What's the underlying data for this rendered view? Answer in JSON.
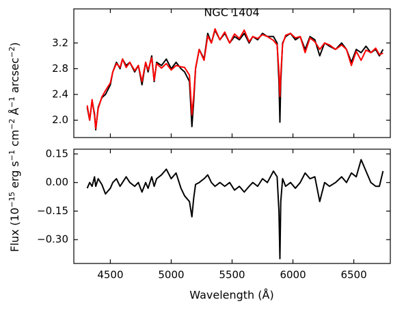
{
  "chart_data": [
    {
      "type": "line",
      "title": "NGC 1404",
      "x": [
        4310,
        4330,
        4350,
        4370,
        4380,
        4400,
        4430,
        4460,
        4500,
        4520,
        4550,
        4580,
        4600,
        4630,
        4660,
        4700,
        4730,
        4760,
        4790,
        4810,
        4840,
        4860,
        4880,
        4920,
        4960,
        5000,
        5040,
        5080,
        5110,
        5150,
        5170,
        5185,
        5200,
        5230,
        5270,
        5300,
        5330,
        5360,
        5400,
        5440,
        5480,
        5520,
        5560,
        5600,
        5640,
        5670,
        5710,
        5750,
        5790,
        5840,
        5870,
        5885,
        5893,
        5900,
        5915,
        5940,
        5980,
        6020,
        6060,
        6100,
        6140,
        6180,
        6220,
        6260,
        6300,
        6350,
        6400,
        6440,
        6480,
        6520,
        6560,
        6600,
        6640,
        6680,
        6710,
        6740
      ],
      "series": [
        {
          "color": "#000000",
          "values": [
            2.2,
            2.0,
            2.3,
            2.1,
            1.85,
            2.2,
            2.35,
            2.4,
            2.55,
            2.75,
            2.9,
            2.8,
            2.95,
            2.85,
            2.9,
            2.75,
            2.85,
            2.55,
            2.9,
            2.75,
            3.0,
            2.6,
            2.9,
            2.85,
            2.95,
            2.8,
            2.9,
            2.8,
            2.75,
            2.6,
            1.9,
            2.3,
            2.8,
            3.1,
            2.95,
            3.35,
            3.2,
            3.4,
            3.25,
            3.35,
            3.2,
            3.3,
            3.25,
            3.35,
            3.2,
            3.3,
            3.25,
            3.35,
            3.3,
            3.3,
            3.2,
            2.6,
            1.97,
            2.6,
            3.2,
            3.3,
            3.35,
            3.25,
            3.3,
            3.1,
            3.3,
            3.25,
            3.0,
            3.2,
            3.15,
            3.1,
            3.2,
            3.1,
            2.9,
            3.1,
            3.05,
            3.15,
            3.05,
            3.1,
            3.0,
            3.1
          ]
        },
        {
          "color": "#ff0000",
          "values": [
            2.23,
            2.0,
            2.32,
            2.07,
            1.87,
            2.18,
            2.36,
            2.46,
            2.58,
            2.75,
            2.88,
            2.82,
            2.95,
            2.82,
            2.9,
            2.77,
            2.85,
            2.6,
            2.9,
            2.78,
            2.97,
            2.62,
            2.88,
            2.81,
            2.88,
            2.78,
            2.85,
            2.83,
            2.82,
            2.7,
            2.08,
            2.38,
            2.81,
            3.1,
            2.93,
            3.31,
            3.2,
            3.42,
            3.25,
            3.37,
            3.2,
            3.34,
            3.27,
            3.4,
            3.22,
            3.3,
            3.27,
            3.33,
            3.3,
            3.24,
            3.17,
            2.75,
            2.37,
            2.7,
            3.18,
            3.32,
            3.35,
            3.28,
            3.3,
            3.05,
            3.28,
            3.22,
            3.1,
            3.2,
            3.17,
            3.1,
            3.17,
            3.1,
            2.85,
            3.07,
            2.93,
            3.09,
            3.05,
            3.12,
            3.02,
            3.04
          ]
        }
      ],
      "xlim": [
        4200,
        6800
      ],
      "xticks": [
        4500,
        5000,
        5500,
        6000,
        6500
      ],
      "ylim": [
        1.73,
        3.73
      ],
      "yticks": [
        {
          "value": 2,
          "label": "2.0"
        },
        {
          "value": 2.4,
          "label": "2.4"
        },
        {
          "value": 2.8,
          "label": "2.8"
        },
        {
          "value": 3.2,
          "label": "3.2"
        }
      ]
    },
    {
      "type": "line",
      "x": [
        4310,
        4330,
        4350,
        4370,
        4380,
        4400,
        4430,
        4460,
        4500,
        4520,
        4550,
        4580,
        4600,
        4630,
        4660,
        4700,
        4730,
        4760,
        4790,
        4810,
        4840,
        4860,
        4880,
        4920,
        4960,
        5000,
        5040,
        5080,
        5110,
        5150,
        5170,
        5185,
        5200,
        5230,
        5270,
        5300,
        5330,
        5360,
        5400,
        5440,
        5480,
        5520,
        5560,
        5600,
        5640,
        5670,
        5710,
        5750,
        5790,
        5840,
        5870,
        5885,
        5893,
        5900,
        5915,
        5940,
        5980,
        6020,
        6060,
        6100,
        6140,
        6180,
        6220,
        6260,
        6300,
        6350,
        6400,
        6440,
        6480,
        6520,
        6560,
        6600,
        6640,
        6680,
        6710,
        6740
      ],
      "series": [
        {
          "color": "#000000",
          "values": [
            -0.03,
            0.0,
            -0.02,
            0.03,
            -0.02,
            0.02,
            -0.01,
            -0.06,
            -0.03,
            0.0,
            0.02,
            -0.02,
            0.0,
            0.03,
            0.0,
            -0.02,
            0.0,
            -0.05,
            0.0,
            -0.03,
            0.03,
            -0.02,
            0.02,
            0.04,
            0.07,
            0.02,
            0.05,
            -0.03,
            -0.07,
            -0.1,
            -0.18,
            -0.08,
            -0.01,
            0.0,
            0.02,
            0.04,
            0.0,
            -0.02,
            0.0,
            -0.02,
            0.0,
            -0.04,
            -0.02,
            -0.05,
            -0.02,
            0.0,
            -0.02,
            0.02,
            0.0,
            0.06,
            0.03,
            -0.15,
            -0.4,
            -0.1,
            0.02,
            -0.02,
            0.0,
            -0.03,
            0.0,
            0.05,
            0.02,
            0.03,
            -0.1,
            0.0,
            -0.02,
            0.0,
            0.03,
            0.0,
            0.05,
            0.03,
            0.12,
            0.06,
            0.0,
            -0.02,
            -0.02,
            0.06
          ]
        }
      ],
      "xlabel": "Wavelength (Å)",
      "ylabel": [
        "Flux (10",
        "−15",
        " erg s",
        "−1",
        " cm",
        "−2",
        " Å",
        "−1",
        " arcsec",
        "−2",
        ")"
      ],
      "xlim": [
        4200,
        6800
      ],
      "xticks": [
        4500,
        5000,
        5500,
        6000,
        6500
      ],
      "ylim": [
        -0.425,
        0.175
      ],
      "yticks": [
        {
          "value": 0.15,
          "label": "0.15"
        },
        {
          "value": 0,
          "label": "0.00"
        },
        {
          "value": -0.15,
          "label": "−0.15"
        },
        {
          "value": -0.3,
          "label": "−0.30"
        }
      ]
    }
  ]
}
